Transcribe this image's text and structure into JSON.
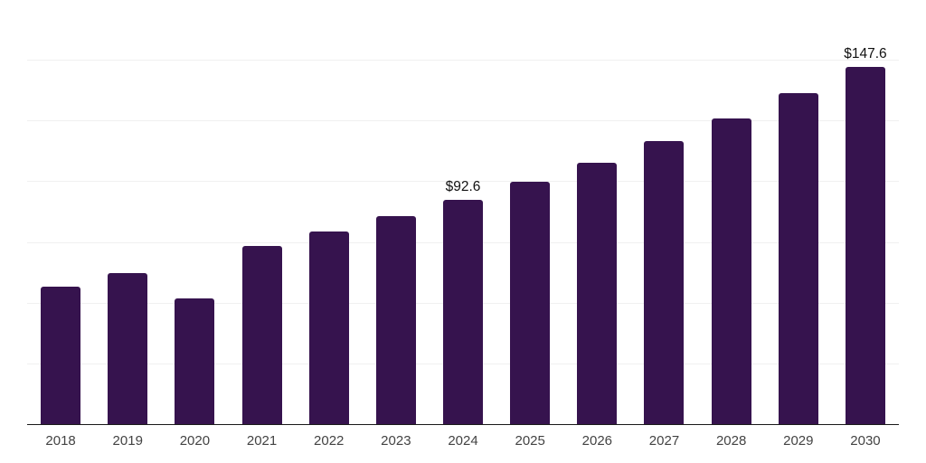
{
  "chart_data": {
    "type": "bar",
    "title": "",
    "xlabel": "",
    "ylabel": "",
    "categories": [
      "2018",
      "2019",
      "2020",
      "2021",
      "2022",
      "2023",
      "2024",
      "2025",
      "2026",
      "2027",
      "2028",
      "2029",
      "2030"
    ],
    "values": [
      56.9,
      62.4,
      52.0,
      73.9,
      79.6,
      86.2,
      92.6,
      100.2,
      108.1,
      117.1,
      126.3,
      136.5,
      147.6
    ],
    "data_labels": {
      "2024": "$92.6",
      "2030": "$147.6"
    },
    "ylim": [
      0,
      175
    ],
    "gridline_step": 25,
    "grid": true,
    "legend": "none",
    "y_axis_labels_visible": false
  },
  "colors": {
    "bar": "#36134e",
    "gridline": "#f0f0f0",
    "axis_line": "#1a1a1a",
    "tick_label": "#434343",
    "data_label": "#111111",
    "background": "#ffffff"
  }
}
